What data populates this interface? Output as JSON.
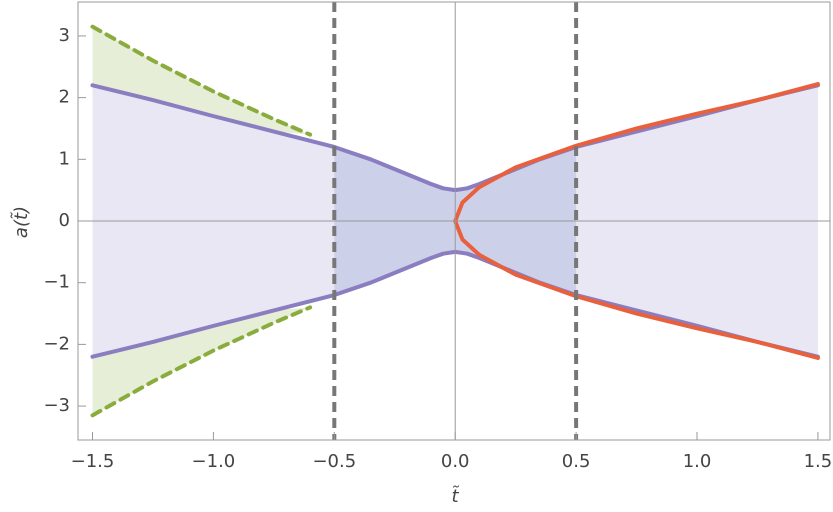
{
  "chart_data": {
    "type": "line",
    "xlabel": "t̃",
    "ylabel": "a(t̃)",
    "xlim": [
      -1.56,
      1.55
    ],
    "ylim": [
      -3.55,
      3.55
    ],
    "xticks": [
      {
        "value": -1.5,
        "label": "−1.5"
      },
      {
        "value": -1.0,
        "label": "−1.0"
      },
      {
        "value": -0.5,
        "label": "−0.5"
      },
      {
        "value": 0,
        "label": "0.0"
      },
      0.5,
      {
        "value": 1.0,
        "label": "1.0"
      },
      1.5
    ],
    "yticks": [
      {
        "value": -3,
        "label": "−3"
      },
      {
        "value": -2,
        "label": "−2"
      },
      {
        "value": -1,
        "label": "−1"
      },
      0,
      1,
      2,
      3
    ],
    "vlines": [
      -0.5,
      0.5
    ],
    "series": [
      {
        "color": "#8a7dc0",
        "x": [
          -1.5,
          -1.25,
          -1,
          -0.75,
          -0.5,
          -0.35,
          -0.2,
          -0.1,
          -0.05,
          0,
          0.05,
          0.1,
          0.2,
          0.35,
          0.5,
          0.75,
          1,
          1.25,
          1.5
        ],
        "values": [
          2.2,
          1.96,
          1.7,
          1.45,
          1.2,
          1.0,
          0.76,
          0.6,
          0.53,
          0.5,
          0.53,
          0.6,
          0.76,
          1.0,
          1.2,
          1.45,
          1.7,
          1.96,
          2.2
        ]
      },
      {
        "color": "#8a7dc0",
        "x": [
          -1.5,
          -1.25,
          -1,
          -0.75,
          -0.5,
          -0.35,
          -0.2,
          -0.1,
          -0.05,
          0,
          0.05,
          0.1,
          0.2,
          0.35,
          0.5,
          0.75,
          1,
          1.25,
          1.5
        ],
        "values": [
          -2.2,
          -1.96,
          -1.7,
          -1.45,
          -1.2,
          -1.0,
          -0.76,
          -0.6,
          -0.53,
          -0.5,
          -0.53,
          -0.6,
          -0.76,
          -1.0,
          -1.2,
          -1.45,
          -1.7,
          -1.96,
          -2.2
        ]
      },
      {
        "color": "#8aac3c",
        "dashed": true,
        "x": [
          -1.5,
          -1.25,
          -1,
          -0.75,
          -0.6
        ],
        "values": [
          3.15,
          2.6,
          2.1,
          1.65,
          1.4
        ]
      },
      {
        "color": "#8aac3c",
        "dashed": true,
        "x": [
          -1.5,
          -1.25,
          -1,
          -0.75,
          -0.6
        ],
        "values": [
          -3.15,
          -2.6,
          -2.1,
          -1.65,
          -1.4
        ]
      },
      {
        "color": "#e8603c",
        "x": [
          1.5,
          1.25,
          1,
          0.75,
          0.5,
          0.25,
          0.1,
          0.03,
          0,
          0.03,
          0.1,
          0.25,
          0.5,
          0.75,
          1,
          1.25,
          1.5
        ],
        "values": [
          2.22,
          1.96,
          1.74,
          1.5,
          1.22,
          0.87,
          0.55,
          0.3,
          0,
          -0.3,
          -0.55,
          -0.87,
          -1.22,
          -1.5,
          -1.74,
          -1.96,
          -2.22
        ]
      }
    ]
  }
}
